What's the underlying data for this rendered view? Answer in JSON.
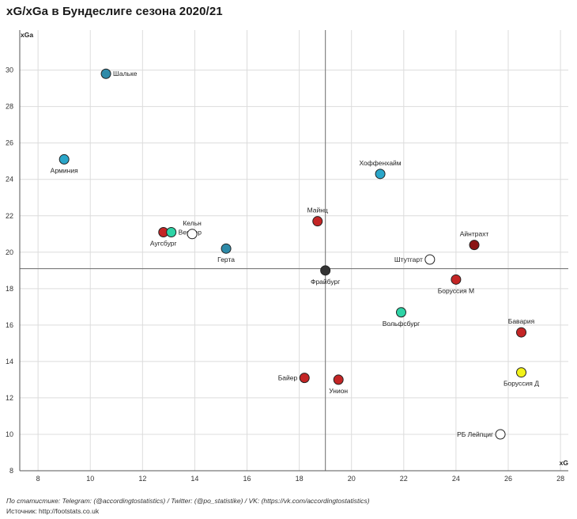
{
  "chart_data": {
    "type": "scatter",
    "title": "xG/xGa в Бундеслиге сезона 2020/21",
    "xlabel": "xG",
    "ylabel": "xGa",
    "xlim": [
      7.3,
      28.3
    ],
    "ylim": [
      8,
      32.2
    ],
    "xticks": [
      8,
      10,
      12,
      14,
      16,
      18,
      20,
      22,
      24,
      26,
      28
    ],
    "yticks": [
      8,
      10,
      12,
      14,
      16,
      18,
      20,
      22,
      24,
      26,
      28,
      30
    ],
    "grid": true,
    "reference_lines": {
      "x": 19.0,
      "y": 19.1
    },
    "points": [
      {
        "name": "Шальке",
        "x": 10.6,
        "y": 29.8,
        "color": "#2e8aa8",
        "label_pos": "right"
      },
      {
        "name": "Арминия",
        "x": 9.0,
        "y": 25.1,
        "color": "#2aa6c9",
        "label_pos": "below"
      },
      {
        "name": "Хоффенхайм",
        "x": 21.1,
        "y": 24.3,
        "color": "#2aa6c9",
        "label_pos": "above"
      },
      {
        "name": "Майнц",
        "x": 18.7,
        "y": 21.7,
        "color": "#c42525",
        "label_pos": "above"
      },
      {
        "name": "Аугсбург",
        "x": 12.8,
        "y": 21.1,
        "color": "#c42525",
        "label_pos": "below"
      },
      {
        "name": "Вердер",
        "x": 13.1,
        "y": 21.1,
        "color": "#2ed3a6",
        "label_pos": "right"
      },
      {
        "name": "Кельн",
        "x": 13.9,
        "y": 21.0,
        "color": "#ffffff",
        "label_pos": "above"
      },
      {
        "name": "Герта",
        "x": 15.2,
        "y": 20.2,
        "color": "#2e8aa8",
        "label_pos": "below"
      },
      {
        "name": "Айнтрахт",
        "x": 24.7,
        "y": 20.4,
        "color": "#8b1414",
        "label_pos": "above"
      },
      {
        "name": "Штутгарт",
        "x": 23.0,
        "y": 19.6,
        "color": "#ffffff",
        "label_pos": "left"
      },
      {
        "name": "Фрайбург",
        "x": 19.0,
        "y": 19.0,
        "color": "#333333",
        "label_pos": "below"
      },
      {
        "name": "Боруссия М",
        "x": 24.0,
        "y": 18.5,
        "color": "#c42525",
        "label_pos": "below"
      },
      {
        "name": "Вольфсбург",
        "x": 21.9,
        "y": 16.7,
        "color": "#2ed3a6",
        "label_pos": "below"
      },
      {
        "name": "Бавария",
        "x": 26.5,
        "y": 15.6,
        "color": "#c42525",
        "label_pos": "above"
      },
      {
        "name": "Боруссия Д",
        "x": 26.5,
        "y": 13.4,
        "color": "#f2f21a",
        "label_pos": "below"
      },
      {
        "name": "Байер",
        "x": 18.2,
        "y": 13.1,
        "color": "#c42525",
        "label_pos": "left"
      },
      {
        "name": "Унион",
        "x": 19.5,
        "y": 13.0,
        "color": "#c42525",
        "label_pos": "below"
      },
      {
        "name": "РБ Лейпциг",
        "x": 25.7,
        "y": 10.0,
        "color": "#ffffff",
        "label_pos": "left"
      }
    ]
  },
  "footer": {
    "source": "По статистике: Telegram: (@accordingtostatistics) / Twitter: (@po_statistike) / VK: (https://vk.com/accordingtostatistics)",
    "url": "Источник: http://footstats.co.uk"
  }
}
